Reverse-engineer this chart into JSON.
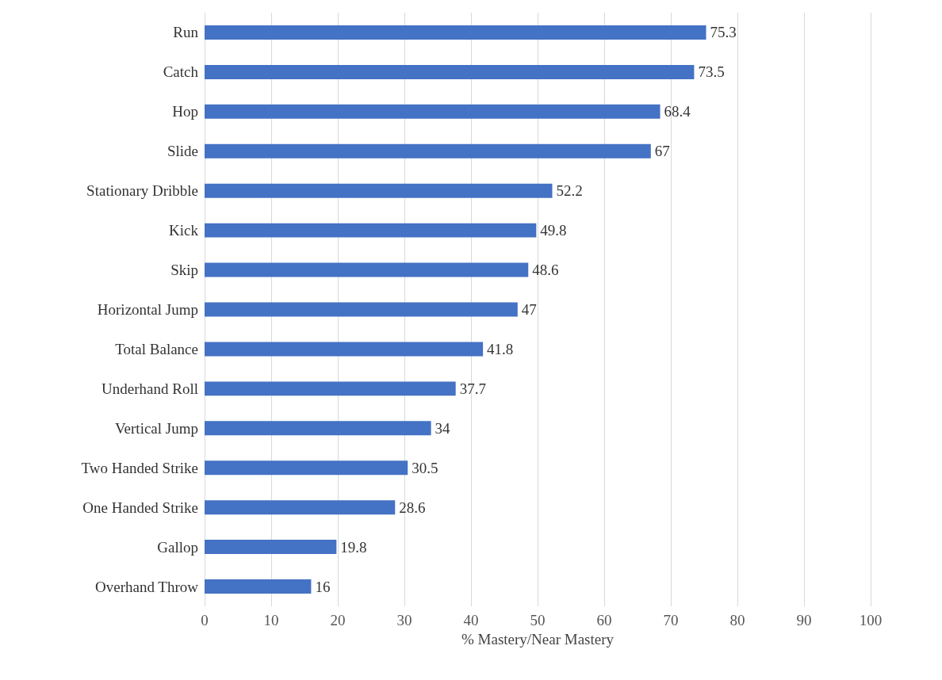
{
  "chart_data": {
    "type": "bar",
    "orientation": "horizontal",
    "xlabel": "% Mastery/Near Mastery",
    "categories": [
      "Run",
      "Catch",
      "Hop",
      "Slide",
      "Stationary Dribble",
      "Kick",
      "Skip",
      "Horizontal Jump",
      "Total Balance",
      "Underhand Roll",
      "Vertical Jump",
      "Two Handed Strike",
      "One Handed Strike",
      "Gallop",
      "Overhand Throw"
    ],
    "values": [
      75.3,
      73.5,
      68.4,
      67,
      52.2,
      49.8,
      48.6,
      47,
      41.8,
      37.7,
      34,
      30.5,
      28.6,
      19.8,
      16
    ],
    "color": "#4472c4",
    "xlim": [
      0,
      100
    ],
    "xticks": [
      0,
      10,
      20,
      30,
      40,
      50,
      60,
      70,
      80,
      90,
      100
    ],
    "grid": "x",
    "data_labels": true
  }
}
